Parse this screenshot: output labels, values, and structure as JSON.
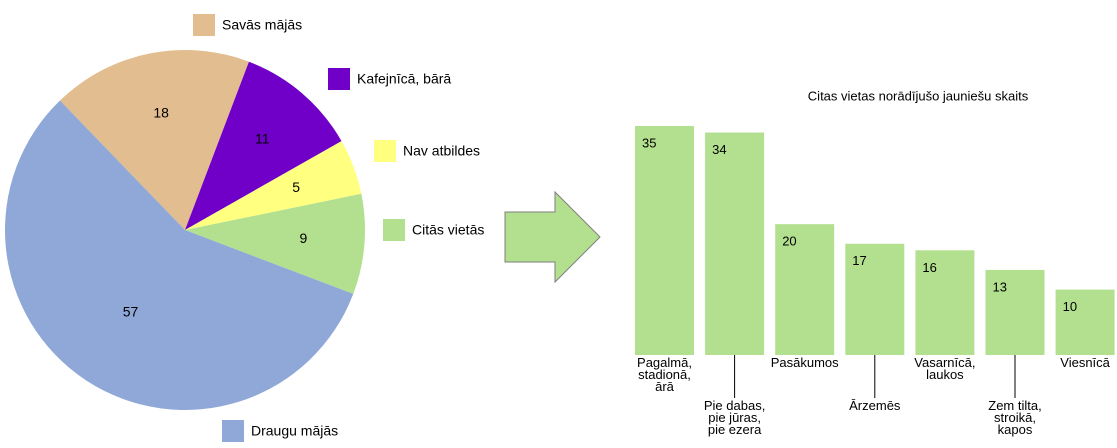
{
  "chart_data": [
    {
      "type": "pie",
      "categories": [
        "Savās mājās",
        "Kafejnīcā, bārā",
        "Nav atbildes",
        "Citās vietās",
        "Draugu mājās"
      ],
      "values": [
        18,
        11,
        5,
        9,
        57
      ],
      "colors": [
        "#e2bd8f",
        "#7000c8",
        "#ffff80",
        "#b3e08f",
        "#8fa8d8"
      ]
    },
    {
      "type": "bar",
      "title": "Citas vietas norādījušo jauniešu skaits",
      "categories": [
        "Pagalmā,\nstadionā,\nārā",
        "Pie dabas,\npie jūras,\npie ezera",
        "Pasākumos",
        "Ārzemēs",
        "Vasarnīcā,\nlaukos",
        "Zem tilta,\nstroikā,\nkapos",
        "Viesnīcā"
      ],
      "values": [
        35,
        34,
        20,
        17,
        16,
        13,
        10
      ],
      "color": "#b3e08f"
    }
  ]
}
